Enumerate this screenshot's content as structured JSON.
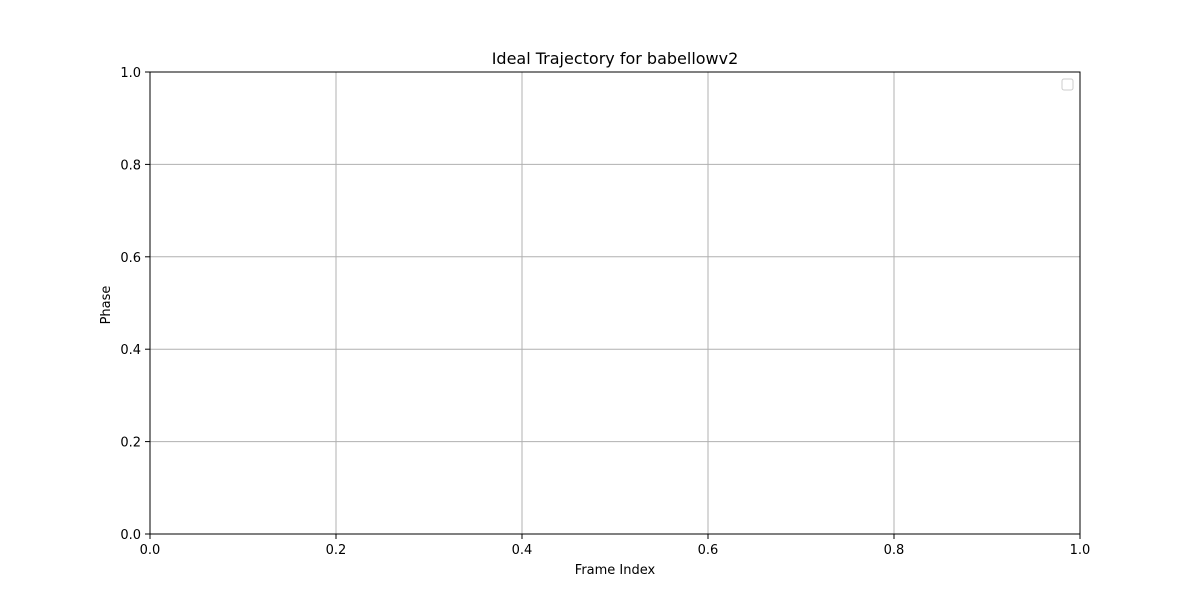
{
  "chart_data": {
    "type": "line",
    "title": "Ideal Trajectory for babellowv2",
    "xlabel": "Frame Index",
    "ylabel": "Phase",
    "xlim": [
      0.0,
      1.0
    ],
    "ylim": [
      0.0,
      1.0
    ],
    "x_ticks": [
      "0.0",
      "0.2",
      "0.4",
      "0.6",
      "0.8",
      "1.0"
    ],
    "y_ticks": [
      "0.0",
      "0.2",
      "0.4",
      "0.6",
      "0.8",
      "1.0"
    ],
    "grid": true,
    "legend": {
      "placement": "top-right",
      "entries": []
    },
    "series": []
  },
  "colors": {
    "grid": "#b0b0b0",
    "axes": "#000000",
    "legend_border": "#cccccc"
  }
}
